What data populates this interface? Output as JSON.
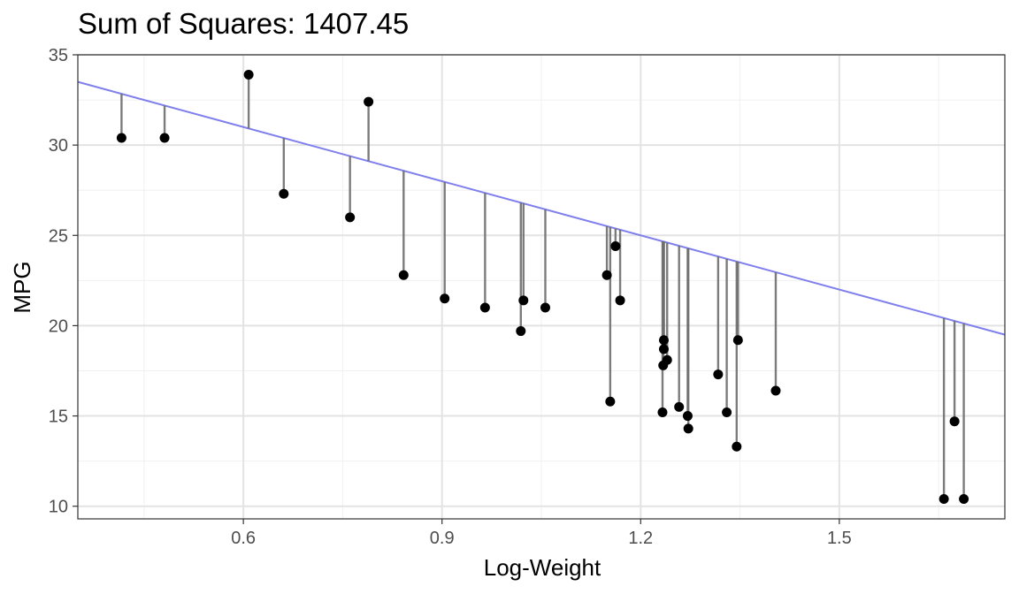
{
  "chart_data": {
    "type": "scatter",
    "title": "Sum of Squares: 1407.45",
    "xlabel": "Log-Weight",
    "ylabel": "MPG",
    "xlim": [
      0.35,
      1.75
    ],
    "ylim": [
      9.3,
      35.0
    ],
    "x_ticks": [
      0.6,
      0.9,
      1.2,
      1.5
    ],
    "x_tick_labels": [
      "0.6",
      "0.9",
      "1.2",
      "1.5"
    ],
    "y_ticks": [
      10,
      15,
      20,
      25,
      30,
      35
    ],
    "y_tick_labels": [
      "10",
      "15",
      "20",
      "25",
      "30",
      "35"
    ],
    "grid": true,
    "legend": "none",
    "fit_line": {
      "intercept": 37.0,
      "slope": -10.0,
      "color": "#7f7fee"
    },
    "residual_color": "#6e6e6e",
    "point_color": "#000000",
    "points": [
      {
        "x": 0.416,
        "y": 30.4
      },
      {
        "x": 0.481,
        "y": 30.4
      },
      {
        "x": 0.608,
        "y": 33.9
      },
      {
        "x": 0.661,
        "y": 27.3
      },
      {
        "x": 0.761,
        "y": 26.0
      },
      {
        "x": 0.789,
        "y": 32.4
      },
      {
        "x": 0.842,
        "y": 22.8
      },
      {
        "x": 0.904,
        "y": 21.5
      },
      {
        "x": 0.965,
        "y": 21.0
      },
      {
        "x": 1.019,
        "y": 19.7
      },
      {
        "x": 1.023,
        "y": 21.4
      },
      {
        "x": 1.056,
        "y": 21.0
      },
      {
        "x": 1.149,
        "y": 22.8
      },
      {
        "x": 1.154,
        "y": 15.8
      },
      {
        "x": 1.162,
        "y": 24.4
      },
      {
        "x": 1.169,
        "y": 21.4
      },
      {
        "x": 1.233,
        "y": 15.2
      },
      {
        "x": 1.234,
        "y": 17.8
      },
      {
        "x": 1.235,
        "y": 18.7
      },
      {
        "x": 1.235,
        "y": 19.2
      },
      {
        "x": 1.24,
        "y": 18.1
      },
      {
        "x": 1.258,
        "y": 15.5
      },
      {
        "x": 1.271,
        "y": 15.0
      },
      {
        "x": 1.272,
        "y": 14.3
      },
      {
        "x": 1.317,
        "y": 17.3
      },
      {
        "x": 1.33,
        "y": 15.2
      },
      {
        "x": 1.345,
        "y": 13.3
      },
      {
        "x": 1.347,
        "y": 19.2
      },
      {
        "x": 1.404,
        "y": 16.4
      },
      {
        "x": 1.658,
        "y": 10.4
      },
      {
        "x": 1.674,
        "y": 14.7
      },
      {
        "x": 1.688,
        "y": 10.4
      }
    ]
  }
}
